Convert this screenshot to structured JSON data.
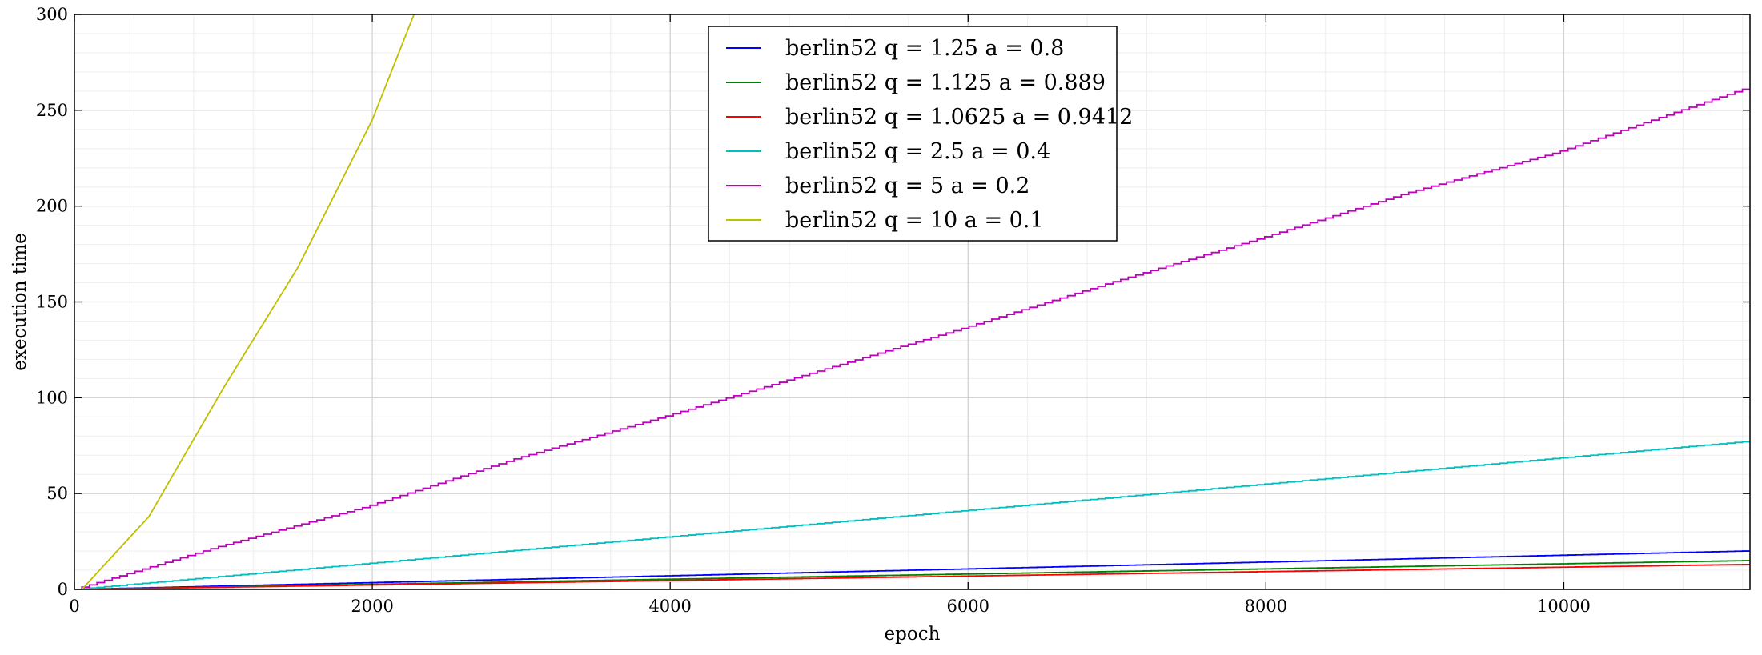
{
  "chart_data": {
    "type": "line",
    "title": "",
    "xlabel": "epoch",
    "ylabel": "execution time",
    "xlim": [
      0,
      11250
    ],
    "ylim": [
      0,
      300
    ],
    "xticks": [
      0,
      2000,
      4000,
      6000,
      8000,
      10000
    ],
    "yticks": [
      0,
      50,
      100,
      150,
      200,
      250,
      300
    ],
    "xtick_labels": [
      "0",
      "2000",
      "4000",
      "6000",
      "8000",
      "10000"
    ],
    "ytick_labels": [
      "0",
      "50",
      "100",
      "150",
      "200",
      "250",
      "300"
    ],
    "grid": true,
    "minor_grid": true,
    "legend_position": "top-center",
    "series": [
      {
        "name": "berlin52 q = 1.25 a = 0.8",
        "color": "#0000ff",
        "step": true,
        "x": [
          50,
          11250
        ],
        "y": [
          0,
          20
        ]
      },
      {
        "name": "berlin52 q = 1.125 a = 0.889",
        "color": "#008000",
        "step": true,
        "x": [
          50,
          11250
        ],
        "y": [
          0,
          15
        ]
      },
      {
        "name": "berlin52 q = 1.0625 a = 0.9412",
        "color": "#ff0000",
        "step": true,
        "x": [
          50,
          11250
        ],
        "y": [
          0,
          13
        ]
      },
      {
        "name": "berlin52 q = 2.5 a = 0.4",
        "color": "#00bfbf",
        "step": true,
        "x": [
          50,
          11250
        ],
        "y": [
          0,
          77
        ]
      },
      {
        "name": "berlin52 q = 5 a = 0.2",
        "color": "#bf00bf",
        "step": true,
        "x": [
          50,
          1000,
          2000,
          3000,
          4000,
          5000,
          6000,
          7000,
          8000,
          9000,
          10000,
          11250
        ],
        "y": [
          0,
          22,
          43,
          68,
          90,
          113,
          136,
          160,
          183,
          207,
          228,
          261
        ]
      },
      {
        "name": "berlin52 q = 10 a = 0.1",
        "color": "#bfbf00",
        "step": false,
        "x": [
          50,
          500,
          1000,
          1500,
          2000,
          2280
        ],
        "y": [
          0,
          38,
          105,
          168,
          245,
          300
        ]
      }
    ]
  }
}
